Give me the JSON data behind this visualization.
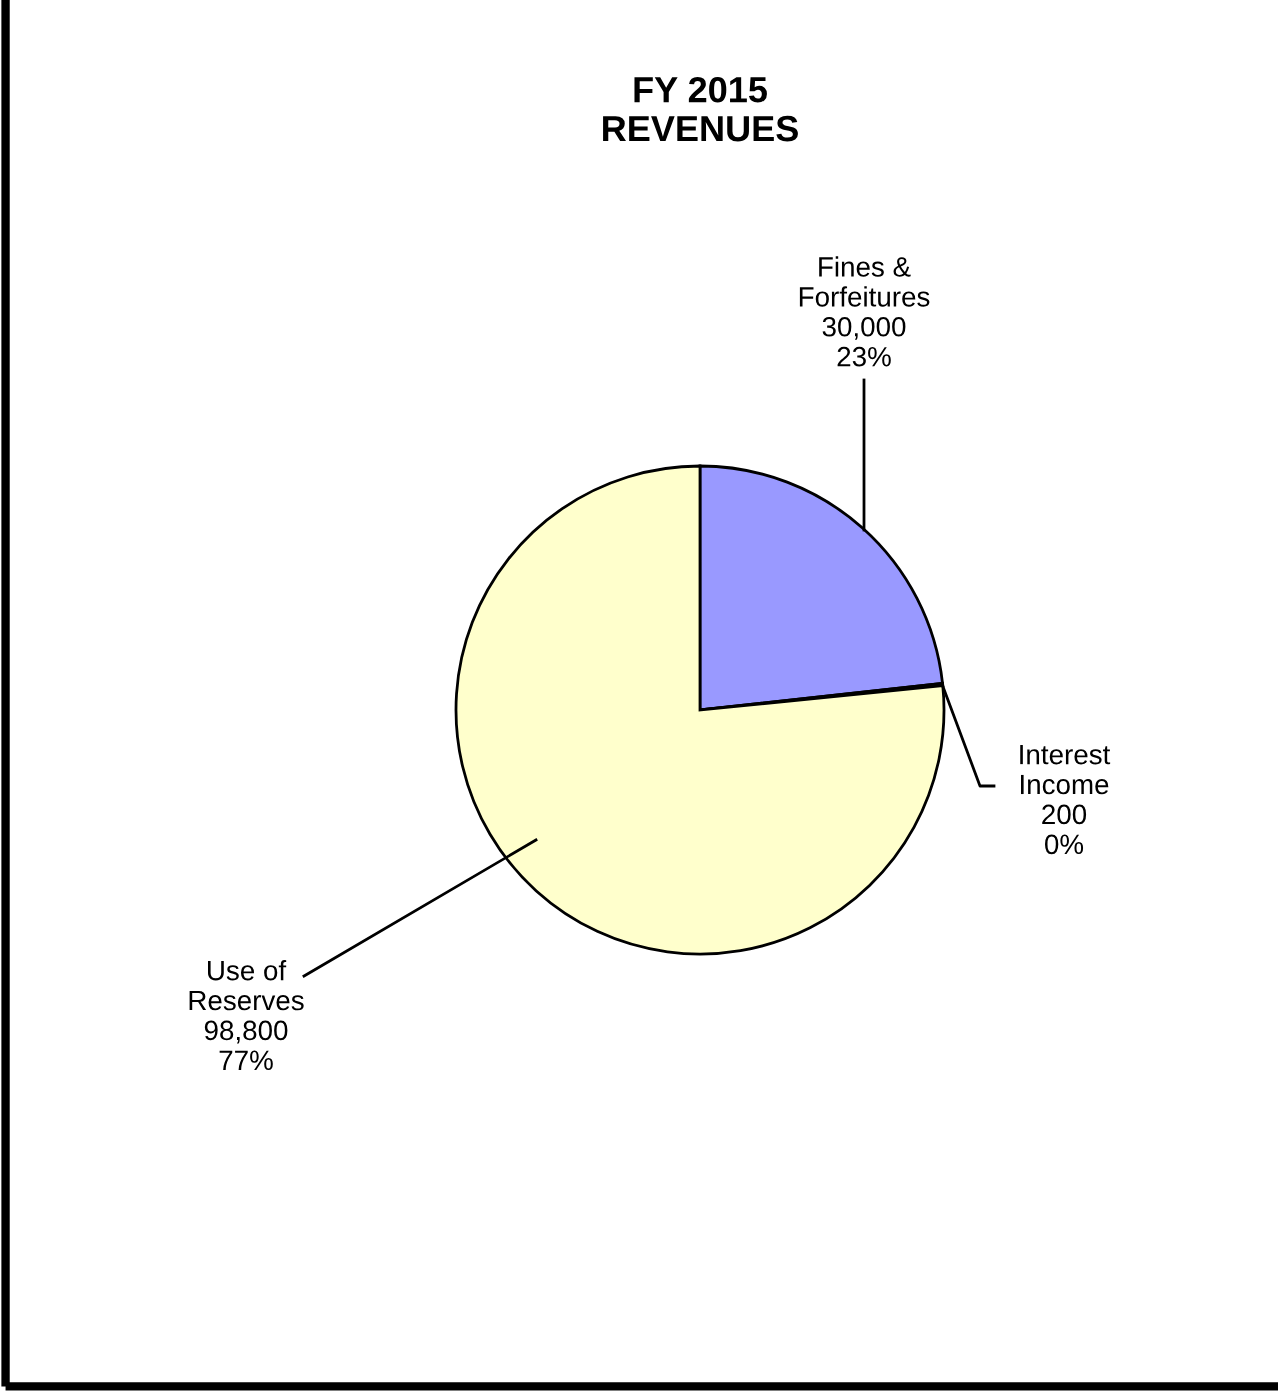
{
  "chart_data": {
    "type": "pie",
    "title": "FY 2015\nREVENUES",
    "categories": [
      "Fines &\nForfeitures",
      "Interest\nIncome",
      "Use of\nReserves"
    ],
    "values": [
      30000,
      200,
      98800
    ],
    "value_labels": [
      "30,000\n23%",
      "200\n0%",
      "98,800\n77%"
    ],
    "colors": [
      "#9999ff",
      "#ffffff",
      "#ffffcc"
    ]
  }
}
